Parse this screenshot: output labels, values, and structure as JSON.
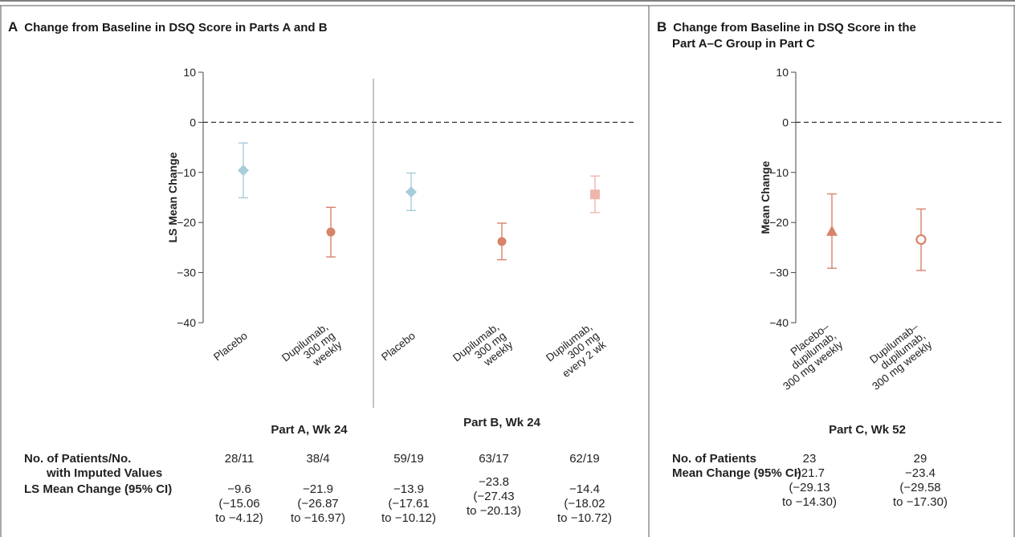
{
  "colors": {
    "placebo": "#a9cdd8",
    "dupilumab": "#d9826a",
    "dupilumab_q2w": "#efb7ac",
    "axis": "#444444",
    "border": "#555555"
  },
  "panel_a": {
    "letter": "A",
    "title": "Change from Baseline in DSQ Score in Parts A and B",
    "ylabel": "LS Mean Change",
    "groups": [
      {
        "title": "Part A, Wk 24"
      },
      {
        "title": "Part B, Wk 24"
      }
    ],
    "table": {
      "row1_label_line1": "No. of Patients/No.",
      "row1_label_line2": "with Imputed Values",
      "row2_label": "LS Mean Change (95% CI)",
      "columns": [
        {
          "n": "28/11",
          "mean": "−9.6",
          "ci1": "(−15.06",
          "ci2": "to −4.12)"
        },
        {
          "n": "38/4",
          "mean": "−21.9",
          "ci1": "(−26.87",
          "ci2": "to −16.97)"
        },
        {
          "n": "59/19",
          "mean": "−13.9",
          "ci1": "(−17.61",
          "ci2": "to −10.12)"
        },
        {
          "n": "63/17",
          "mean": "−23.8",
          "ci1": "(−27.43",
          "ci2": "to −20.13)"
        },
        {
          "n": "62/19",
          "mean": "−14.4",
          "ci1": "(−18.02",
          "ci2": "to −10.72)"
        }
      ]
    }
  },
  "panel_b": {
    "letter": "B",
    "title_line1": "Change from Baseline in DSQ Score in the",
    "title_line2": "Part A–C Group in Part C",
    "ylabel": "Mean Change",
    "groups": [
      {
        "title": "Part C, Wk 52"
      }
    ],
    "table": {
      "row1_label": "No. of Patients",
      "row2_label": "Mean Change (95% CI)",
      "columns": [
        {
          "n": "23",
          "mean": "−21.7",
          "ci1": "(−29.13",
          "ci2": "to −14.30)"
        },
        {
          "n": "29",
          "mean": "−23.4",
          "ci1": "(−29.58",
          "ci2": "to −17.30)"
        }
      ]
    }
  },
  "chart_data": [
    {
      "type": "scatter",
      "title": "Change from Baseline in DSQ Score in Parts A and B",
      "ylabel": "LS Mean Change",
      "ylim": [
        -40,
        10
      ],
      "yticks": [
        10,
        0,
        -10,
        -20,
        -30,
        -40
      ],
      "reference_line": 0,
      "categories": [
        [
          "Placebo"
        ],
        [
          "Dupilumab,",
          "300 mg",
          "weekly"
        ],
        [
          "Placebo"
        ],
        [
          "Dupilumab,",
          "300 mg",
          "weekly"
        ],
        [
          "Dupilumab,",
          "300 mg",
          "every 2 wk"
        ]
      ],
      "points": [
        {
          "mean": -9.6,
          "lower": -15.06,
          "upper": -4.12,
          "marker": "diamond",
          "color": "#a9cdd8"
        },
        {
          "mean": -21.9,
          "lower": -26.87,
          "upper": -16.97,
          "marker": "circle",
          "color": "#d9826a"
        },
        {
          "mean": -13.9,
          "lower": -17.61,
          "upper": -10.12,
          "marker": "diamond",
          "color": "#a9cdd8"
        },
        {
          "mean": -23.8,
          "lower": -27.43,
          "upper": -20.13,
          "marker": "circle",
          "color": "#d9826a"
        },
        {
          "mean": -14.4,
          "lower": -18.02,
          "upper": -10.72,
          "marker": "square",
          "color": "#efb7ac"
        }
      ]
    },
    {
      "type": "scatter",
      "title": "Change from Baseline in DSQ Score in the Part A–C Group in Part C",
      "ylabel": "Mean Change",
      "ylim": [
        -40,
        10
      ],
      "yticks": [
        10,
        0,
        -10,
        -20,
        -30,
        -40
      ],
      "reference_line": 0,
      "categories": [
        [
          "Placebo–",
          "dupilumab,",
          "300 mg weekly"
        ],
        [
          "Dupilumab–",
          "dupilumab,",
          "300 mg weekly"
        ]
      ],
      "points": [
        {
          "mean": -21.7,
          "lower": -29.13,
          "upper": -14.3,
          "marker": "triangle",
          "color": "#d9826a"
        },
        {
          "mean": -23.4,
          "lower": -29.58,
          "upper": -17.3,
          "marker": "open-circle",
          "color": "#d9826a"
        }
      ]
    }
  ]
}
